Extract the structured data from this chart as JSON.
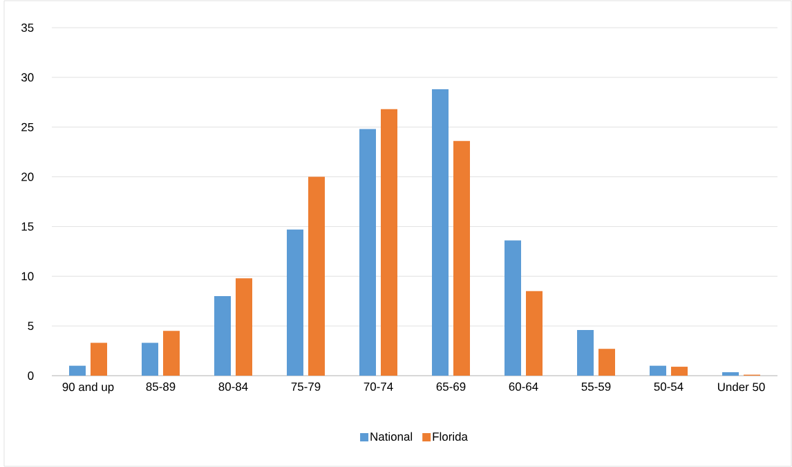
{
  "chart_data": {
    "type": "bar",
    "categories": [
      "90 and up",
      "85-89",
      "80-84",
      "75-79",
      "70-74",
      "65-69",
      "60-64",
      "55-59",
      "50-54",
      "Under 50"
    ],
    "series": [
      {
        "name": "National",
        "color": "#5b9bd5",
        "values": [
          1.0,
          3.3,
          8.0,
          14.7,
          24.8,
          28.8,
          13.6,
          4.6,
          1.0,
          0.35
        ]
      },
      {
        "name": "Florida",
        "color": "#ed7d31",
        "values": [
          3.3,
          4.5,
          9.8,
          20.0,
          26.8,
          23.6,
          8.5,
          2.7,
          0.9,
          0.1
        ]
      }
    ],
    "ylim": [
      0,
      35
    ],
    "yticks": [
      0,
      5,
      10,
      15,
      20,
      25,
      30,
      35
    ],
    "grid": "y",
    "legend": "bottom"
  }
}
